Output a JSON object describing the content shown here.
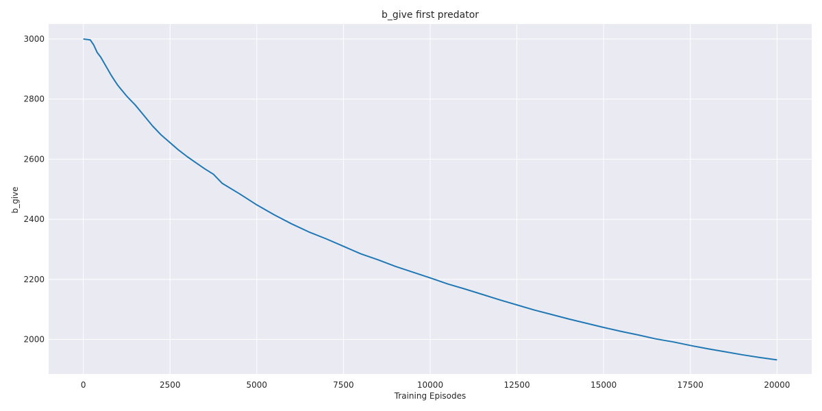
{
  "chart_data": {
    "type": "line",
    "title": "b_give first predator",
    "xlabel": "Training Episodes",
    "ylabel": "b_give",
    "xlim": [
      -1000,
      21000
    ],
    "ylim": [
      1885,
      3050
    ],
    "xticks": [
      0,
      2500,
      5000,
      7500,
      10000,
      12500,
      15000,
      17500,
      20000
    ],
    "yticks": [
      2000,
      2200,
      2400,
      2600,
      2800,
      3000
    ],
    "grid": true,
    "colors": {
      "background": "#eaeaf2",
      "grid": "#ffffff",
      "line": "#1f77b4"
    },
    "series": [
      {
        "x": [
          0,
          200,
          300,
          400,
          500,
          600,
          700,
          800,
          900,
          1000,
          1250,
          1500,
          1750,
          2000,
          2250,
          2500,
          2750,
          3000,
          3250,
          3500,
          3750,
          4000,
          4500,
          5000,
          5500,
          6000,
          6500,
          7000,
          7500,
          8000,
          8500,
          9000,
          9500,
          10000,
          10500,
          11000,
          11500,
          12000,
          12500,
          13000,
          13500,
          14000,
          14500,
          15000,
          15500,
          16000,
          16500,
          17000,
          17500,
          18000,
          18500,
          19000,
          19500,
          20000
        ],
        "y": [
          3000,
          2997,
          2980,
          2955,
          2940,
          2920,
          2900,
          2880,
          2862,
          2845,
          2810,
          2780,
          2745,
          2710,
          2680,
          2655,
          2630,
          2608,
          2588,
          2568,
          2550,
          2520,
          2485,
          2448,
          2415,
          2385,
          2358,
          2335,
          2310,
          2285,
          2265,
          2243,
          2224,
          2205,
          2185,
          2168,
          2150,
          2132,
          2115,
          2098,
          2083,
          2068,
          2054,
          2040,
          2027,
          2015,
          2002,
          1992,
          1980,
          1969,
          1959,
          1949,
          1940,
          1932
        ]
      }
    ]
  }
}
